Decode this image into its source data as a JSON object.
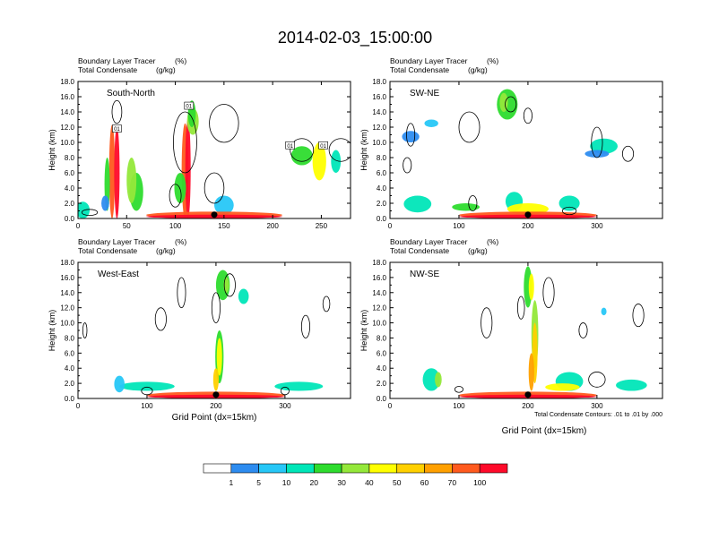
{
  "title": "2014-02-03_15:00:00",
  "chart_data": {
    "type": "heatmap",
    "panel_titles": [
      "Boundary Layer Tracer",
      "Total Condensate"
    ],
    "panel_units": [
      "(%)",
      "(g/kg)"
    ],
    "ylabel": "Height (km)",
    "xlabel": "Grid Point (dx=15km)",
    "ylim": [
      0,
      18
    ],
    "yticks": [
      "0.0",
      "2.0",
      "4.0",
      "6.0",
      "8.0",
      "10.0",
      "12.0",
      "14.0",
      "16.0",
      "18.0"
    ],
    "contour_note": "Total Condensate Contours: .01 to .01 by .000",
    "panels": [
      {
        "name": "South-North",
        "xmax": 280,
        "xticks": [
          0,
          50,
          100,
          150,
          200,
          250
        ],
        "contour_labels": [
          "01",
          "01",
          "01",
          "01"
        ]
      },
      {
        "name": "SW-NE",
        "xmax": 395,
        "xticks": [
          0,
          100,
          200,
          300
        ],
        "contour_labels": []
      },
      {
        "name": "West-East",
        "xmax": 395,
        "xticks": [
          0,
          100,
          200,
          300
        ],
        "contour_labels": []
      },
      {
        "name": "NW-SE",
        "xmax": 395,
        "xticks": [
          0,
          100,
          200,
          300
        ],
        "contour_labels": []
      }
    ],
    "colorbar": {
      "levels": [
        1,
        5,
        10,
        20,
        30,
        40,
        50,
        60,
        70,
        100
      ],
      "colors": [
        "#ffffff",
        "#2d8cf0",
        "#27c7f7",
        "#00e6b8",
        "#2edc2e",
        "#94e83a",
        "#ffff00",
        "#ffd000",
        "#ffa000",
        "#ff5a1e",
        "#ff0a2a"
      ]
    }
  }
}
